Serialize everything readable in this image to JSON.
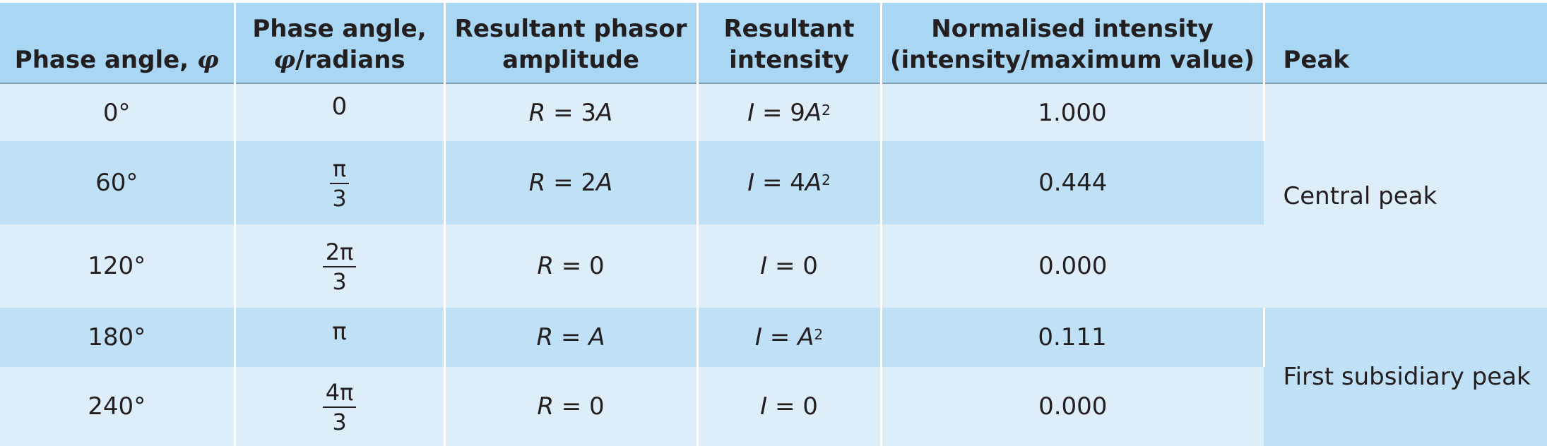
{
  "headers": {
    "col1_text": "Phase angle, ",
    "col1_symbol": "φ",
    "col2_line1": "Phase angle,",
    "col2_symbol": "φ",
    "col2_suffix": "/radians",
    "col3_line1": "Resultant phasor",
    "col3_line2": "amplitude",
    "col4_line1": "Resultant",
    "col4_line2": "intensity",
    "col5_line1": "Normalised intensity",
    "col5_line2": "(intensity/maximum value)",
    "col6": "Peak"
  },
  "rows": [
    {
      "phase_deg": "0°",
      "radians_num": "0",
      "radians_den": "",
      "amplitude_var": "R",
      "amplitude_eq": " = 3",
      "amplitude_unit": "A",
      "intensity_var": "I",
      "intensity_eq": " = 9",
      "intensity_unit": "A",
      "intensity_sup": "2",
      "normalised": "1.000"
    },
    {
      "phase_deg": "60°",
      "radians_num": "π",
      "radians_den": "3",
      "amplitude_var": "R",
      "amplitude_eq": " = 2",
      "amplitude_unit": "A",
      "intensity_var": "I",
      "intensity_eq": " = 4",
      "intensity_unit": "A",
      "intensity_sup": "2",
      "normalised": "0.444"
    },
    {
      "phase_deg": "120°",
      "radians_num": "2π",
      "radians_den": "3",
      "amplitude_var": "R",
      "amplitude_eq": " = 0",
      "amplitude_unit": "",
      "intensity_var": "I",
      "intensity_eq": " = 0",
      "intensity_unit": "",
      "intensity_sup": "",
      "normalised": "0.000"
    },
    {
      "phase_deg": "180°",
      "radians_num": "π",
      "radians_den": "",
      "amplitude_var": "R",
      "amplitude_eq": " = ",
      "amplitude_unit": "A",
      "intensity_var": "I",
      "intensity_eq": " = ",
      "intensity_unit": "A",
      "intensity_sup": "2",
      "normalised": "0.111"
    },
    {
      "phase_deg": "240°",
      "radians_num": "4π",
      "radians_den": "3",
      "amplitude_var": "R",
      "amplitude_eq": " = 0",
      "amplitude_unit": "",
      "intensity_var": "I",
      "intensity_eq": " = 0",
      "intensity_unit": "",
      "intensity_sup": "",
      "normalised": "0.000"
    }
  ],
  "peaks": {
    "central": "Central peak",
    "first_subsidiary": "First subsidiary peak"
  },
  "colors": {
    "header_bg": "#a9d6f2",
    "row_light": "#ddeef9",
    "row_dark": "#bfe0f5",
    "text": "#231f20"
  }
}
